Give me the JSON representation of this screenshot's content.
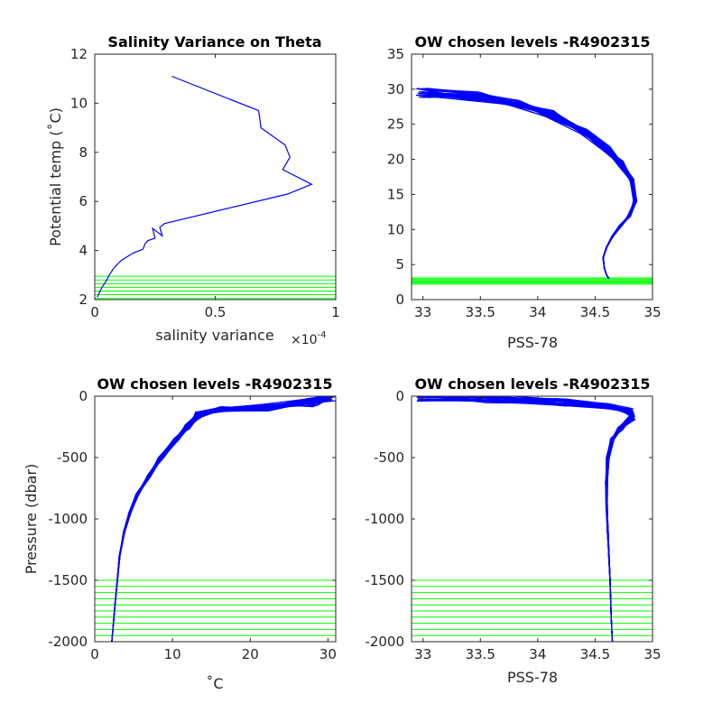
{
  "chart_data": [
    {
      "type": "line",
      "title": "Salinity Variance on Theta",
      "xlabel": "salinity variance",
      "x_multiplier": "×10",
      "x_multiplier_exp": "-4",
      "ylabel": "Potential temp (˚C)",
      "xlim": [
        0,
        1
      ],
      "ylim": [
        2,
        12
      ],
      "xticks": [
        0,
        0.5,
        1
      ],
      "xtick_labels": [
        "0",
        "0.5",
        "1"
      ],
      "yticks": [
        2,
        4,
        6,
        8,
        10,
        12
      ],
      "ytick_labels": [
        "2",
        "4",
        "6",
        "8",
        "10",
        "12"
      ],
      "grid": false,
      "series": [
        {
          "color": "#0000ff",
          "x": [
            0.32,
            0.68,
            0.69,
            0.79,
            0.81,
            0.78,
            0.8,
            0.9,
            0.8,
            0.29,
            0.27,
            0.28,
            0.24,
            0.25,
            0.22,
            0.21,
            0.2,
            0.16,
            0.11,
            0.08,
            0.06,
            0.05,
            0.04,
            0.03,
            0.025,
            0.02,
            0.015,
            0.01
          ],
          "y": [
            11.1,
            9.7,
            9.0,
            8.3,
            7.8,
            7.3,
            7.2,
            6.7,
            6.3,
            5.1,
            4.95,
            4.6,
            4.9,
            4.5,
            4.4,
            4.3,
            4.05,
            3.9,
            3.6,
            3.3,
            3.0,
            2.8,
            2.65,
            2.5,
            2.4,
            2.3,
            2.2,
            2.1
          ]
        }
      ],
      "hlines": {
        "color": "#00ff00",
        "y": [
          2.05,
          2.2,
          2.35,
          2.5,
          2.65,
          2.8,
          2.95
        ]
      }
    },
    {
      "type": "line",
      "title": "OW chosen levels -R4902315",
      "xlabel": "PSS-78",
      "ylabel": "",
      "xlim": [
        32.9,
        35
      ],
      "ylim": [
        0,
        35
      ],
      "xticks": [
        33,
        33.5,
        34,
        34.5,
        35
      ],
      "xtick_labels": [
        "33",
        "33.5",
        "34",
        "34.5",
        "35"
      ],
      "yticks": [
        0,
        5,
        10,
        15,
        20,
        25,
        30,
        35
      ],
      "ytick_labels": [
        "0",
        "5",
        "10",
        "15",
        "20",
        "25",
        "30",
        "35"
      ],
      "grid": false,
      "series": [
        {
          "color": "#0000ff",
          "profile_count": 30,
          "x": [
            33.0,
            33.45,
            33.8,
            34.1,
            34.4,
            34.6,
            34.72,
            34.82,
            34.85,
            34.8,
            34.72,
            34.65,
            34.6,
            34.57,
            34.58,
            34.6,
            34.62
          ],
          "y": [
            29.5,
            29.0,
            28.0,
            26.5,
            24.0,
            21.5,
            19.5,
            17.0,
            14.0,
            12.0,
            10.5,
            9.0,
            7.5,
            6.0,
            4.5,
            3.5,
            3.0
          ]
        }
      ],
      "hlines": {
        "color": "#00ff00",
        "y": [
          2.2,
          2.35,
          2.5,
          2.65,
          2.8,
          2.95,
          3.1
        ]
      }
    },
    {
      "type": "line",
      "title": "OW chosen levels -R4902315",
      "xlabel": "˚C",
      "ylabel": "Pressure (dbar)",
      "xlim": [
        0,
        31
      ],
      "ylim": [
        -2000,
        0
      ],
      "xticks": [
        0,
        10,
        20,
        30
      ],
      "xtick_labels": [
        "0",
        "10",
        "20",
        "30"
      ],
      "yticks": [
        -2000,
        -1500,
        -1000,
        -500,
        0
      ],
      "ytick_labels": [
        "-2000",
        "-1500",
        "-1000",
        "-500",
        "0"
      ],
      "grid": false,
      "series": [
        {
          "color": "#0000ff",
          "profile_count": 30,
          "x": [
            30.5,
            28.0,
            22.0,
            16.0,
            13.5,
            12.0,
            10.5,
            8.5,
            7.0,
            5.5,
            4.5,
            3.8,
            3.2,
            2.9,
            2.6,
            2.4,
            2.2
          ],
          "y": [
            0,
            -50,
            -90,
            -110,
            -150,
            -250,
            -350,
            -500,
            -650,
            -800,
            -950,
            -1100,
            -1300,
            -1500,
            -1700,
            -1850,
            -2000
          ]
        }
      ],
      "hlines": {
        "color": "#00ff00",
        "y": [
          -1500,
          -1550,
          -1600,
          -1650,
          -1700,
          -1750,
          -1800,
          -1850,
          -1900,
          -1950
        ]
      }
    },
    {
      "type": "line",
      "title": "OW chosen levels -R4902315",
      "xlabel": "PSS-78",
      "ylabel": "",
      "xlim": [
        32.9,
        35
      ],
      "ylim": [
        -2000,
        0
      ],
      "xticks": [
        33,
        33.5,
        34,
        34.5,
        35
      ],
      "xtick_labels": [
        "33",
        "33.5",
        "34",
        "34.5",
        "35"
      ],
      "yticks": [
        -2000,
        -1500,
        -1000,
        -500,
        0
      ],
      "ytick_labels": [
        "-2000",
        "-1500",
        "-1000",
        "-500",
        "0"
      ],
      "grid": false,
      "series": [
        {
          "color": "#0000ff",
          "profile_count": 30,
          "x": [
            33.0,
            33.6,
            34.2,
            34.6,
            34.8,
            34.82,
            34.72,
            34.65,
            34.61,
            34.6,
            34.6,
            34.61,
            34.62,
            34.63,
            34.64,
            34.65
          ],
          "y": [
            0,
            -20,
            -50,
            -80,
            -120,
            -180,
            -260,
            -350,
            -500,
            -700,
            -900,
            -1100,
            -1300,
            -1500,
            -1800,
            -2000
          ]
        }
      ],
      "hlines": {
        "color": "#00ff00",
        "y": [
          -1500,
          -1550,
          -1600,
          -1650,
          -1700,
          -1750,
          -1800,
          -1850,
          -1900,
          -1950
        ]
      }
    }
  ]
}
